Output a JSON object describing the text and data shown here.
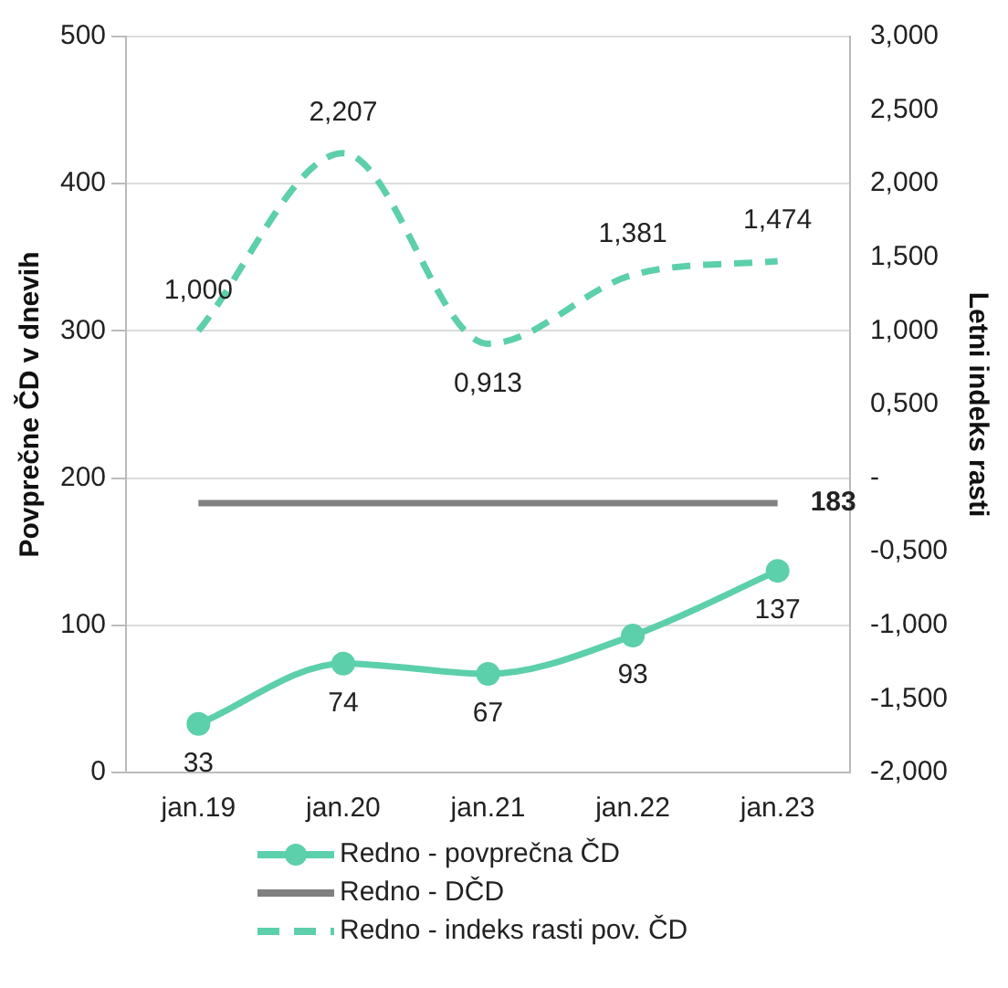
{
  "chart_data": {
    "type": "line",
    "ylabel": "Povprečne ČD v dnevih",
    "y2label": "Letni indeks rasti",
    "categories": [
      "jan.19",
      "jan.20",
      "jan.21",
      "jan.22",
      "jan.23"
    ],
    "series": [
      {
        "name": "Redno - povprečna ČD",
        "color": "#5ccfab",
        "values": [
          33,
          74,
          67,
          93,
          137
        ],
        "marker": "circle",
        "line_style": "solid",
        "value_labels": [
          "33",
          "74",
          "67",
          "93",
          "137"
        ]
      },
      {
        "name": "Redno - DČD",
        "color": "#808080",
        "values": [
          183,
          183,
          183,
          183,
          183
        ],
        "marker": "none",
        "line_style": "solid",
        "value_labels": [
          null,
          null,
          null,
          null,
          "183"
        ]
      },
      {
        "name": "Redno - indeks rasti pov. ČD",
        "color": "#5ccfab",
        "axis": "y2",
        "values": [
          1.0,
          2.207,
          0.913,
          1.381,
          1.474
        ],
        "marker": "none",
        "line_style": "dashed",
        "value_labels": [
          "1,000",
          "2,207",
          "0,913",
          "1,381",
          "1,474"
        ]
      }
    ],
    "ylim": [
      0,
      500
    ],
    "yticks": [
      0,
      100,
      200,
      300,
      400,
      500
    ],
    "y2lim": [
      -2,
      3
    ],
    "y2ticks": [
      {
        "value": -2,
        "label": "-2,000"
      },
      {
        "value": -1.5,
        "label": "-1,500"
      },
      {
        "value": -1,
        "label": "-1,000"
      },
      {
        "value": -0.5,
        "label": "-0,500"
      },
      {
        "value": 0,
        "label": "-"
      },
      {
        "value": 0.5,
        "label": "0,500"
      },
      {
        "value": 1,
        "label": "1,000"
      },
      {
        "value": 1.5,
        "label": "1,500"
      },
      {
        "value": 2,
        "label": "2,000"
      },
      {
        "value": 2.5,
        "label": "2,500"
      },
      {
        "value": 3,
        "label": "3,000"
      }
    ],
    "grid": "y",
    "legend": "bottom"
  }
}
